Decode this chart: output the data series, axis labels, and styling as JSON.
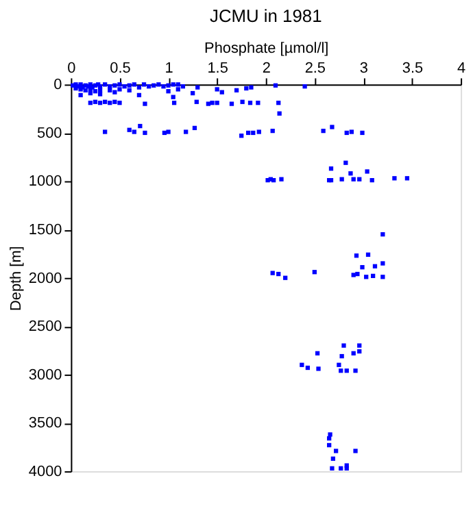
{
  "chart_data": {
    "type": "scatter",
    "title": "JCMU in 1981",
    "xlabel": "Phosphate [µmol/l]",
    "ylabel": "Depth [m]",
    "x": [
      0.02,
      0.05,
      0.08,
      0.1,
      0.12,
      0.15,
      0.18,
      0.2,
      0.22,
      0.25,
      0.28,
      0.3,
      0.35,
      0.4,
      0.45,
      0.5,
      0.55,
      0.6,
      0.65,
      0.7,
      0.75,
      0.8,
      0.85,
      0.9,
      0.95,
      1.0,
      1.05,
      1.1,
      1.15,
      0.05,
      0.1,
      0.15,
      0.2,
      0.25,
      0.3,
      0.4,
      0.5,
      0.6,
      1.0,
      1.1,
      1.3,
      1.5,
      1.55,
      1.7,
      1.8,
      1.85,
      2.1,
      2.4,
      0.1,
      0.2,
      0.3,
      0.45,
      0.7,
      1.05,
      1.25,
      0.2,
      0.25,
      0.3,
      0.35,
      0.4,
      0.45,
      0.5,
      0.76,
      1.06,
      1.29,
      1.41,
      1.45,
      1.5,
      1.65,
      1.76,
      1.84,
      1.92,
      2.13,
      2.14,
      0.35,
      0.6,
      0.71,
      0.65,
      0.76,
      0.96,
      1.0,
      1.18,
      1.27,
      1.75,
      1.82,
      1.87,
      1.93,
      2.07,
      2.59,
      2.68,
      2.83,
      2.88,
      2.99,
      2.02,
      2.05,
      2.08,
      2.16,
      2.65,
      2.67,
      2.78,
      2.82,
      2.67,
      2.87,
      2.9,
      2.96,
      3.04,
      3.09,
      3.32,
      3.45,
      3.2,
      2.93,
      3.05,
      3.2,
      2.99,
      3.12,
      2.9,
      2.94,
      3.03,
      3.1,
      3.2,
      2.07,
      2.13,
      2.2,
      2.5,
      2.8,
      2.96,
      2.96,
      2.9,
      2.53,
      2.78,
      2.75,
      2.77,
      2.83,
      2.92,
      2.37,
      2.43,
      2.54,
      2.66,
      2.65,
      2.65,
      2.72,
      2.92,
      2.69,
      2.68,
      2.77,
      2.83,
      2.83
    ],
    "values": [
      10,
      0,
      20,
      0,
      30,
      10,
      20,
      0,
      30,
      10,
      0,
      20,
      0,
      20,
      10,
      0,
      20,
      10,
      0,
      30,
      0,
      20,
      10,
      0,
      20,
      10,
      0,
      0,
      20,
      40,
      50,
      60,
      50,
      70,
      60,
      60,
      50,
      60,
      70,
      50,
      30,
      50,
      80,
      60,
      40,
      30,
      10,
      20,
      110,
      90,
      100,
      80,
      110,
      130,
      90,
      190,
      180,
      190,
      180,
      190,
      180,
      190,
      200,
      190,
      180,
      200,
      190,
      190,
      200,
      180,
      190,
      190,
      190,
      300,
      490,
      470,
      430,
      490,
      500,
      500,
      490,
      490,
      450,
      530,
      500,
      500,
      490,
      480,
      480,
      440,
      500,
      490,
      500,
      990,
      980,
      990,
      980,
      990,
      990,
      980,
      810,
      870,
      920,
      980,
      980,
      900,
      990,
      970,
      970,
      1550,
      1770,
      1760,
      1850,
      1890,
      1880,
      1970,
      1960,
      1990,
      1980,
      1990,
      1950,
      1960,
      2000,
      1940,
      2700,
      2700,
      2760,
      2780,
      2780,
      2810,
      2900,
      2960,
      2960,
      2960,
      2900,
      2930,
      2940,
      3620,
      3660,
      3730,
      3790,
      3790,
      3870,
      3970,
      3970,
      3970,
      3940
    ],
    "color": "#0000ff",
    "marker": "square",
    "xlim": [
      0,
      4
    ],
    "xticks": [
      0,
      0.5,
      1,
      1.5,
      2,
      2.5,
      3,
      3.5,
      4
    ],
    "ylim": [
      4000,
      0
    ],
    "yticks": [
      0,
      500,
      1000,
      1500,
      2000,
      2500,
      3000,
      3500,
      4000
    ],
    "grid": false
  }
}
